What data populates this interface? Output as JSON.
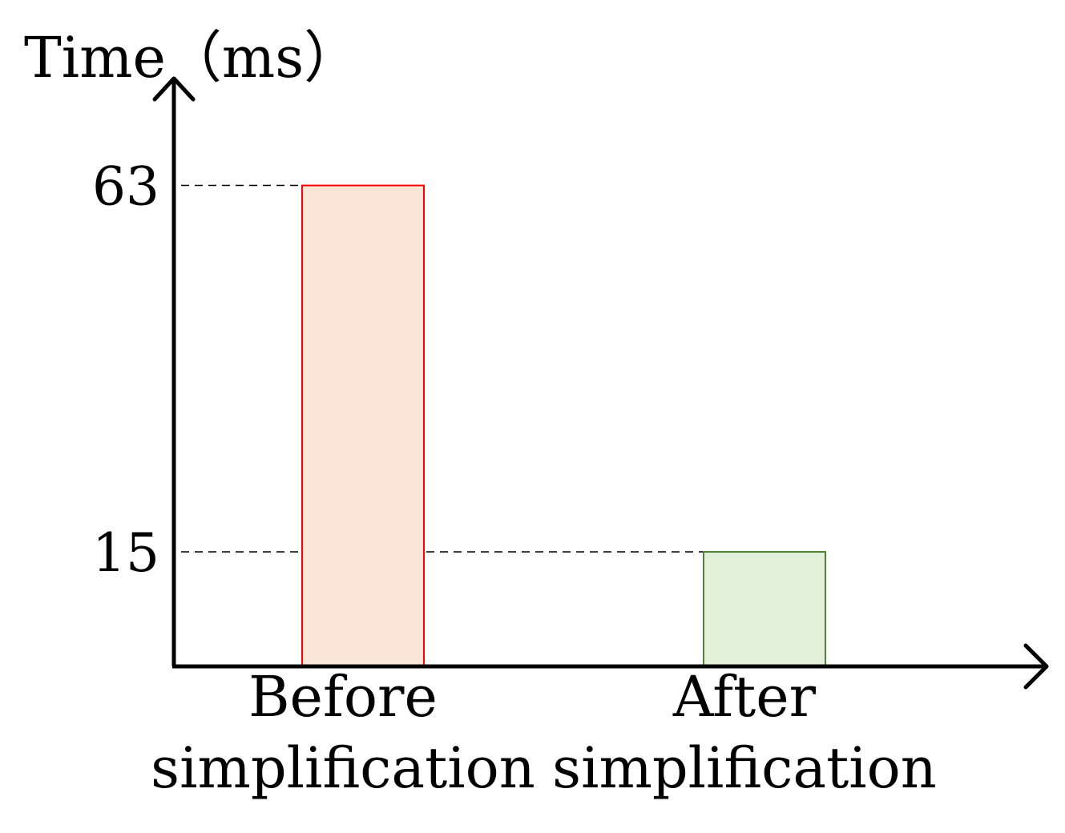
{
  "chart_data": {
    "type": "bar",
    "ylabel": "Time（ms）",
    "xlabel": "",
    "categories": [
      [
        "Before",
        "simplification"
      ],
      [
        "After",
        "simplification"
      ]
    ],
    "values": [
      63,
      15
    ],
    "ylim": [
      0,
      81
    ],
    "yticks": [
      {
        "value": 63,
        "label": "63"
      },
      {
        "value": 15,
        "label": "15"
      }
    ],
    "reference_lines": "dashed from y-axis to each bar top",
    "grid": false,
    "legend": "none",
    "colors": {
      "fills": [
        "#fbe5d6",
        "#e2f0d9"
      ],
      "strokes": [
        "#ff0000",
        "#538135"
      ],
      "axis": "#000000"
    }
  }
}
